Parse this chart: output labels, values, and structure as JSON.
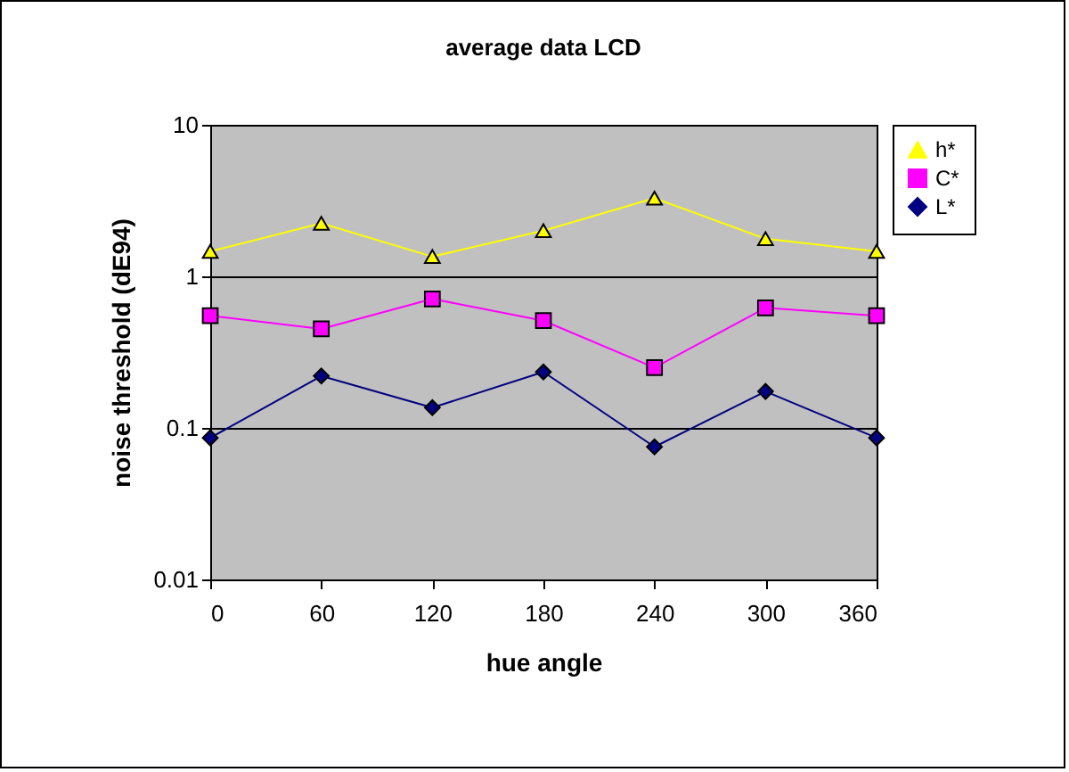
{
  "chart_data": {
    "type": "line",
    "title": "average data LCD",
    "xlabel": "hue angle",
    "ylabel": "noise threshold (dE94)",
    "x": [
      0,
      60,
      120,
      180,
      240,
      300,
      360
    ],
    "series": [
      {
        "name": "h*",
        "color": "#ffff00",
        "marker": "triangle",
        "values": [
          1.46,
          2.24,
          1.35,
          2.0,
          3.28,
          1.77,
          1.46
        ]
      },
      {
        "name": "C*",
        "color": "#ff00ff",
        "marker": "square",
        "values": [
          0.55,
          0.45,
          0.71,
          0.51,
          0.25,
          0.62,
          0.55
        ]
      },
      {
        "name": "L*",
        "color": "#000080",
        "marker": "diamond",
        "values": [
          0.086,
          0.22,
          0.136,
          0.234,
          0.075,
          0.174,
          0.086
        ]
      }
    ],
    "xlim": [
      0,
      360
    ],
    "xticks": [
      0,
      60,
      120,
      180,
      240,
      300,
      360
    ],
    "ylim": [
      0.01,
      10
    ],
    "yticks": [
      0.01,
      0.1,
      1,
      10
    ],
    "log": "y",
    "grid": "y",
    "legend": "right",
    "line_style": "solid"
  }
}
